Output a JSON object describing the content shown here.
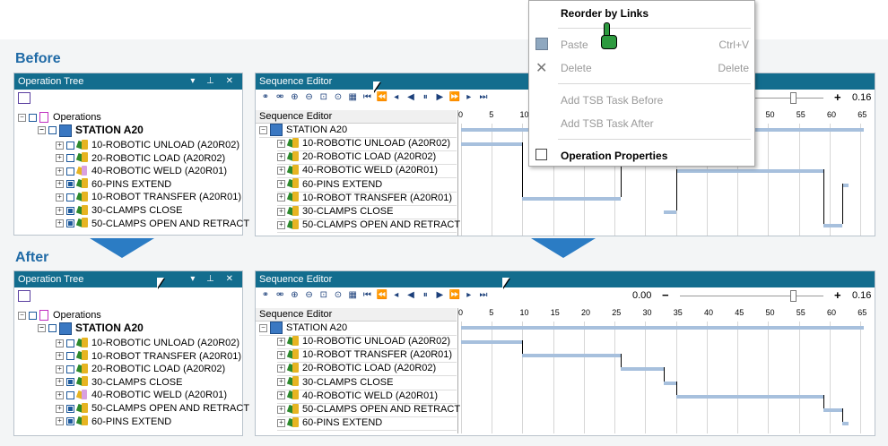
{
  "labels": {
    "before": "Before",
    "after": "After"
  },
  "operation_tree": {
    "title": "Operation Tree",
    "root": "Operations",
    "station": "STATION A20",
    "before_items": [
      {
        "label": "10-ROBOTIC UNLOAD (A20R02)",
        "checked": false,
        "icon": "robot-op-icon"
      },
      {
        "label": "20-ROBOTIC LOAD (A20R02)",
        "checked": false,
        "icon": "robot-op-icon"
      },
      {
        "label": "40-ROBOTIC WELD (A20R01)",
        "checked": false,
        "icon": "weld-op-icon"
      },
      {
        "label": "60-PINS EXTEND",
        "checked": true,
        "icon": "robot-op-icon"
      },
      {
        "label": "10-ROBOT TRANSFER (A20R01)",
        "checked": false,
        "icon": "robot-op-icon"
      },
      {
        "label": "30-CLAMPS CLOSE",
        "checked": true,
        "icon": "robot-op-icon"
      },
      {
        "label": "50-CLAMPS OPEN AND RETRACT",
        "checked": true,
        "icon": "robot-op-icon"
      }
    ],
    "after_items": [
      {
        "label": "10-ROBOTIC UNLOAD (A20R02)",
        "checked": false,
        "icon": "robot-op-icon"
      },
      {
        "label": "10-ROBOT TRANSFER (A20R01)",
        "checked": false,
        "icon": "robot-op-icon"
      },
      {
        "label": "20-ROBOTIC LOAD (A20R02)",
        "checked": false,
        "icon": "robot-op-icon"
      },
      {
        "label": "30-CLAMPS CLOSE",
        "checked": true,
        "icon": "robot-op-icon"
      },
      {
        "label": "40-ROBOTIC WELD (A20R01)",
        "checked": false,
        "icon": "weld-op-icon"
      },
      {
        "label": "50-CLAMPS OPEN AND RETRACT",
        "checked": true,
        "icon": "robot-op-icon"
      },
      {
        "label": "60-PINS EXTEND",
        "checked": true,
        "icon": "robot-op-icon"
      }
    ]
  },
  "sequence_editor": {
    "title": "Sequence Editor",
    "column_header": "Sequence Editor",
    "station": "STATION A20",
    "time_value": "0.00",
    "zoom_value": "0.16",
    "ticks": [
      "0",
      "5",
      "10",
      "15",
      "20",
      "25",
      "30",
      "35",
      "40",
      "45",
      "50",
      "55",
      "60",
      "65"
    ],
    "before_rows": [
      "10-ROBOTIC UNLOAD (A20R02)",
      "20-ROBOTIC LOAD (A20R02)",
      "40-ROBOTIC WELD (A20R01)",
      "60-PINS EXTEND",
      "10-ROBOT TRANSFER (A20R01)",
      "30-CLAMPS CLOSE",
      "50-CLAMPS OPEN AND RETRACT"
    ],
    "after_rows": [
      "10-ROBOTIC UNLOAD (A20R02)",
      "10-ROBOT TRANSFER (A20R01)",
      "20-ROBOTIC LOAD (A20R02)",
      "30-CLAMPS CLOSE",
      "40-ROBOTIC WELD (A20R01)",
      "50-CLAMPS OPEN AND RETRACT",
      "60-PINS EXTEND"
    ]
  },
  "context_menu": {
    "reorder": "Reorder by Links",
    "paste": "Paste",
    "paste_shortcut": "Ctrl+V",
    "delete": "Delete",
    "delete_shortcut": "Delete",
    "add_before": "Add TSB Task Before",
    "add_after": "Add TSB Task After",
    "properties": "Operation Properties"
  },
  "colors": {
    "titlebar": "#136d8e",
    "accent": "#1f6aa6",
    "bar": "#a7c0dd",
    "arrow": "#2b7cc4"
  }
}
